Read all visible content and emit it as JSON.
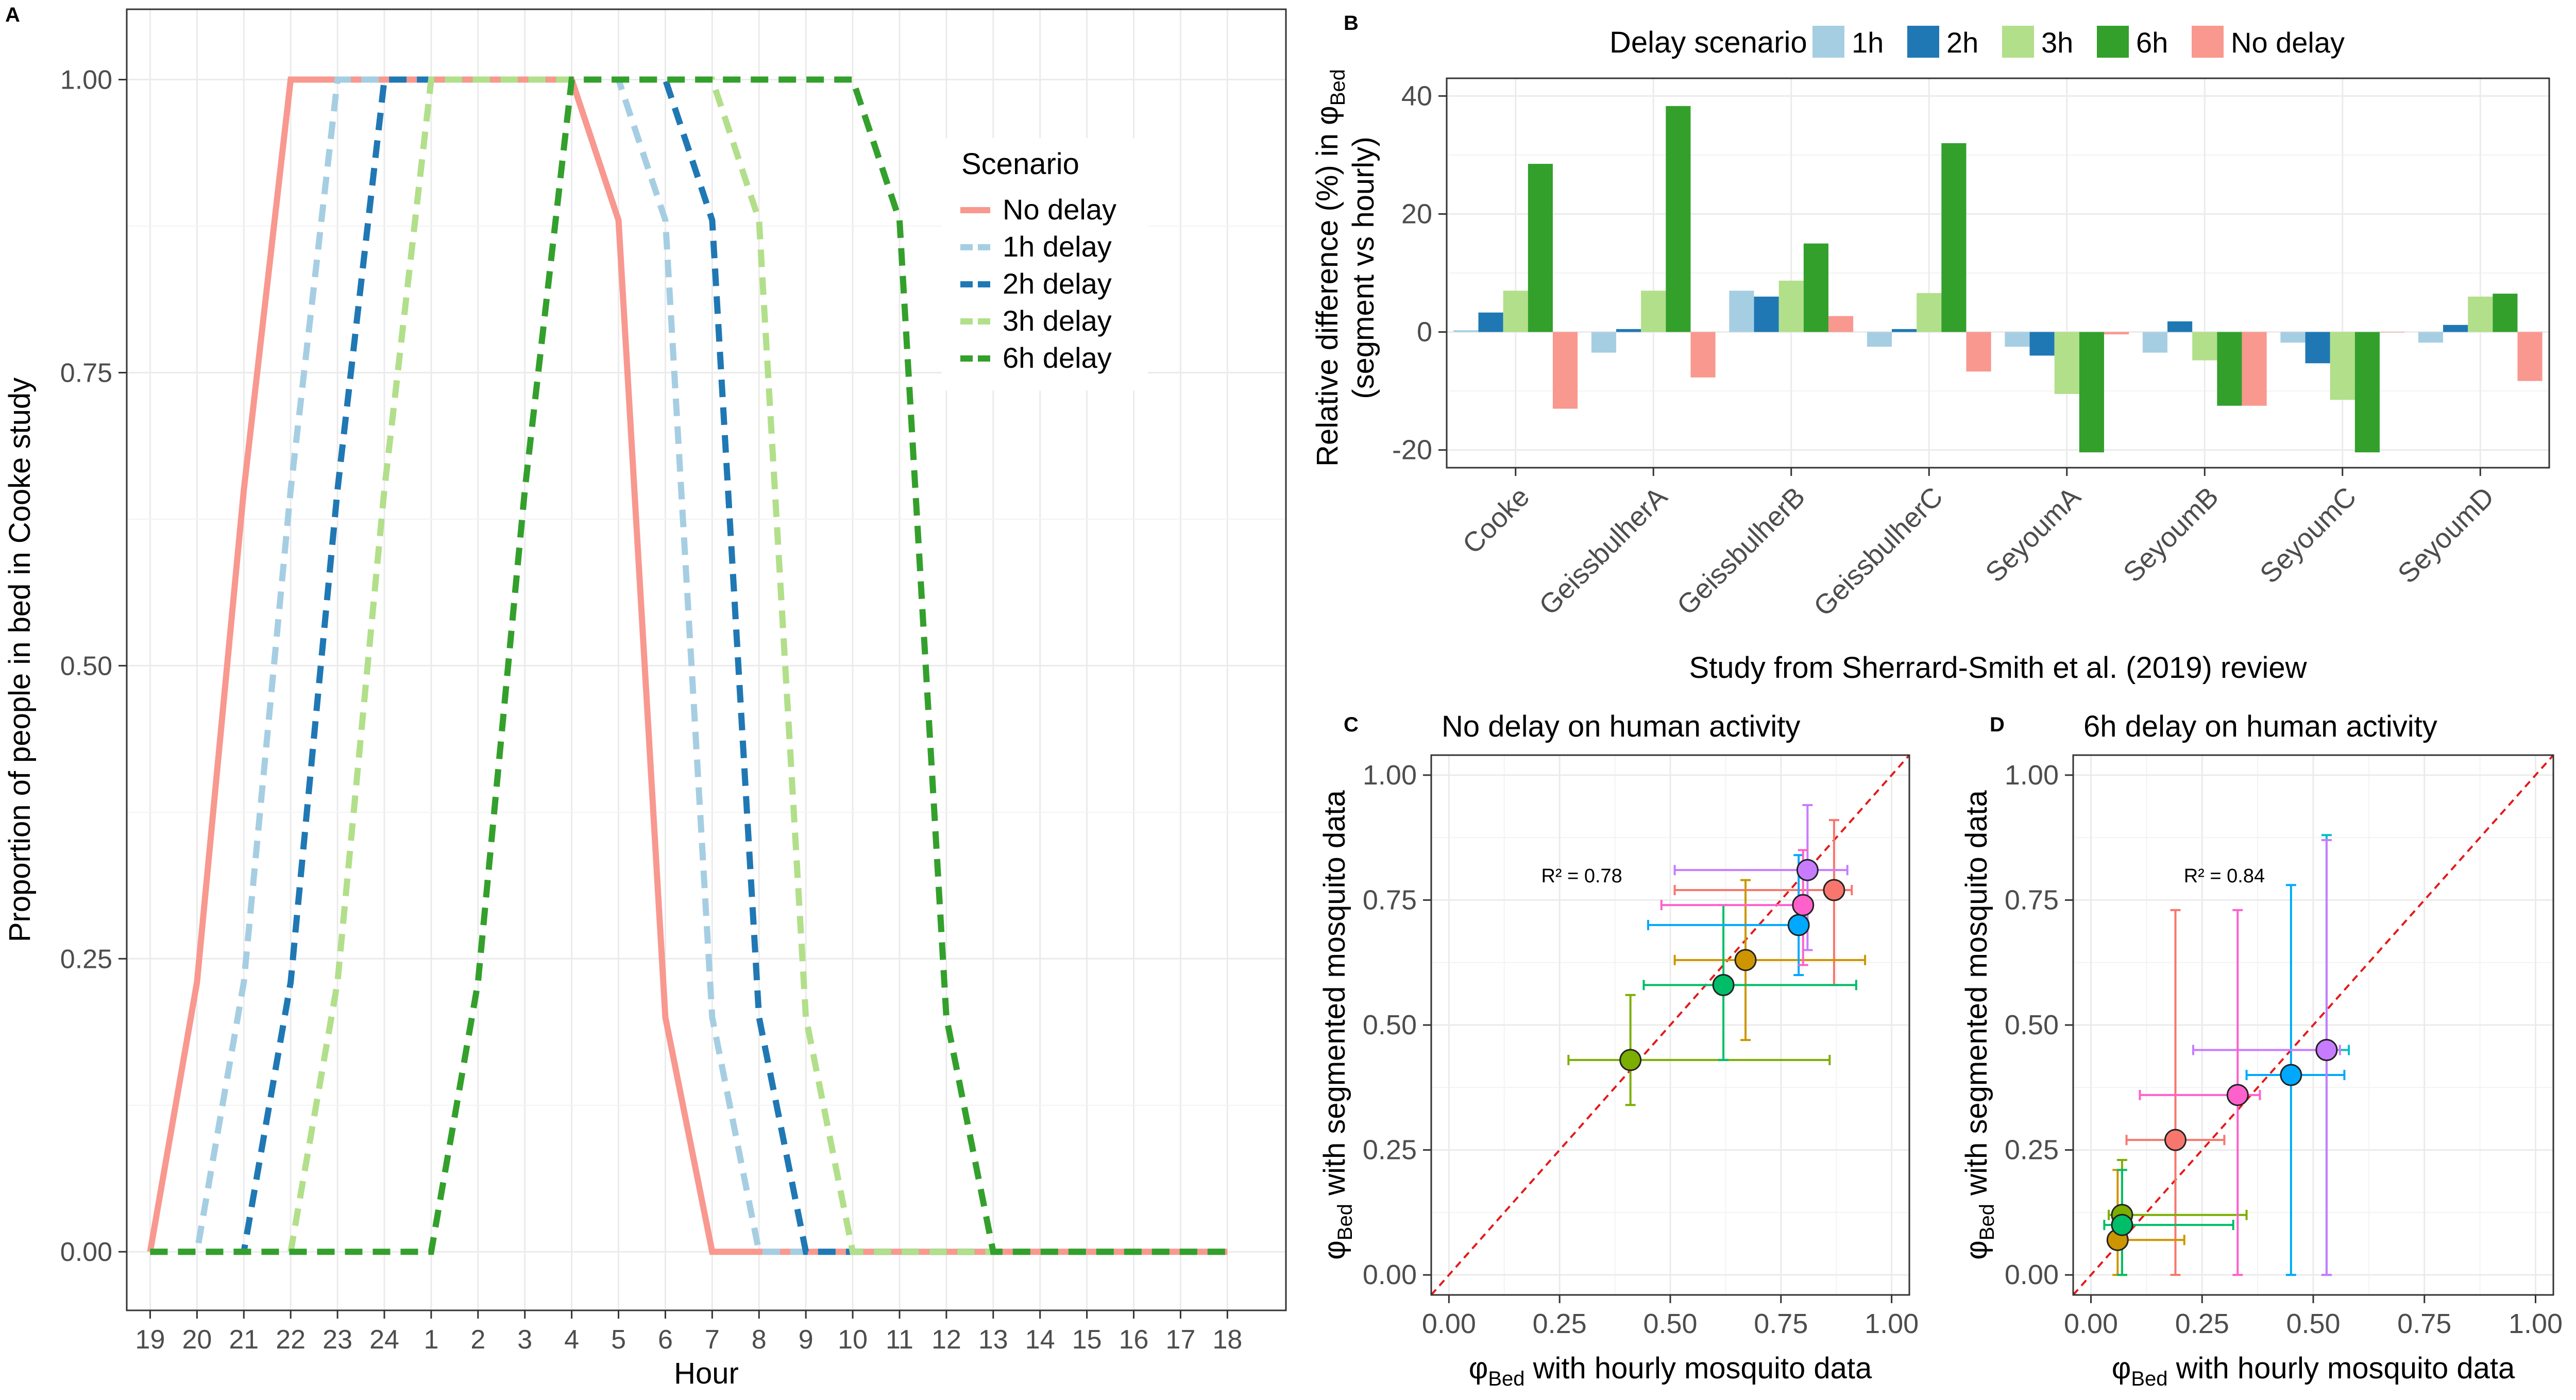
{
  "colors": {
    "no_delay": "#F8988F",
    "d1h": "#A6CEE3",
    "d2h": "#1F78B4",
    "d3h": "#B2DF8A",
    "d6h": "#33A02C",
    "grid": "#EBEBEB",
    "axis_text": "#4D4D4D",
    "identity_line": "#E41A1C",
    "study_palette": [
      "#F8766D",
      "#CD9600",
      "#7CAE00",
      "#00BE67",
      "#00BFC4",
      "#00A9FF",
      "#C77CFF",
      "#FF61CC"
    ]
  },
  "panels": {
    "a": {
      "tag": "A"
    },
    "b": {
      "tag": "B"
    },
    "c": {
      "tag": "C",
      "title": "No delay on human activity",
      "r2": "R² = 0.78"
    },
    "d": {
      "tag": "D",
      "title": "6h delay on human activity",
      "r2": "R² = 0.84"
    }
  },
  "chart_data": [
    {
      "id": "A",
      "type": "line",
      "title": "",
      "xlabel": "Hour",
      "ylabel": "Proportion of people in bed in Cooke study",
      "categories": [
        "19",
        "20",
        "21",
        "22",
        "23",
        "24",
        "1",
        "2",
        "3",
        "4",
        "5",
        "6",
        "7",
        "8",
        "9",
        "10",
        "11",
        "12",
        "13",
        "14",
        "15",
        "16",
        "17",
        "18"
      ],
      "ylim": [
        0,
        1.05
      ],
      "yticks": [
        "0.00",
        "0.25",
        "0.50",
        "0.75",
        "1.00"
      ],
      "legend": {
        "title": "Scenario",
        "position": "top-right"
      },
      "series": [
        {
          "name": "No delay",
          "color_key": "no_delay",
          "dashed": false,
          "values": [
            0,
            0.23,
            0.65,
            1,
            1,
            1,
            1,
            1,
            1,
            1,
            0.88,
            0.2,
            0,
            0,
            0,
            0,
            0,
            0,
            0,
            0,
            0,
            0,
            0,
            0
          ]
        },
        {
          "name": "1h delay",
          "color_key": "d1h",
          "dashed": true,
          "values": [
            0,
            0,
            0.23,
            0.65,
            1,
            1,
            1,
            1,
            1,
            1,
            1,
            0.88,
            0.2,
            0,
            0,
            0,
            0,
            0,
            0,
            0,
            0,
            0,
            0,
            0
          ]
        },
        {
          "name": "2h delay",
          "color_key": "d2h",
          "dashed": true,
          "values": [
            0,
            0,
            0,
            0.23,
            0.65,
            1,
            1,
            1,
            1,
            1,
            1,
            1,
            0.88,
            0.2,
            0,
            0,
            0,
            0,
            0,
            0,
            0,
            0,
            0,
            0
          ]
        },
        {
          "name": "3h delay",
          "color_key": "d3h",
          "dashed": true,
          "values": [
            0,
            0,
            0,
            0,
            0.23,
            0.65,
            1,
            1,
            1,
            1,
            1,
            1,
            1,
            0.88,
            0.2,
            0,
            0,
            0,
            0,
            0,
            0,
            0,
            0,
            0
          ]
        },
        {
          "name": "6h delay",
          "color_key": "d6h",
          "dashed": true,
          "values": [
            0,
            0,
            0,
            0,
            0,
            0,
            0,
            0.23,
            0.65,
            1,
            1,
            1,
            1,
            1,
            1,
            1,
            0.88,
            0.2,
            0,
            0,
            0,
            0,
            0,
            0
          ]
        }
      ]
    },
    {
      "id": "B",
      "type": "bar",
      "title": "",
      "xlabel": "Study from Sherrard-Smith et al. (2019) review",
      "ylabel_line1": "Relative difference (%) in φ",
      "ylabel_sub": "Bed",
      "ylabel_line2": "(segment vs hourly)",
      "categories": [
        "Cooke",
        "GeissbulherA",
        "GeissbulherB",
        "GeissbulherC",
        "SeyoumA",
        "SeyoumB",
        "SeyoumC",
        "SeyoumD"
      ],
      "ylim": [
        -23,
        43
      ],
      "yticks": [
        -20,
        0,
        20,
        40
      ],
      "legend": {
        "title": "Delay scenario",
        "position": "top"
      },
      "series": [
        {
          "name": "1h",
          "color_key": "d1h",
          "values": [
            0.3,
            -3.5,
            7,
            -2.5,
            -2.5,
            -3.5,
            -1.8,
            -1.8
          ]
        },
        {
          "name": "2h",
          "color_key": "d2h",
          "values": [
            3.3,
            0.5,
            6,
            0.5,
            -4,
            1.8,
            -5.3,
            1.2
          ]
        },
        {
          "name": "3h",
          "color_key": "d3h",
          "values": [
            7,
            7,
            8.7,
            6.6,
            -10.5,
            -4.8,
            -11.5,
            6
          ]
        },
        {
          "name": "6h",
          "color_key": "d6h",
          "values": [
            28.5,
            38.3,
            15,
            32,
            -20.4,
            -12.5,
            -20.4,
            6.5
          ]
        },
        {
          "name": "No delay",
          "color_key": "no_delay",
          "values": [
            -13,
            -7.7,
            2.7,
            -6.7,
            -0.4,
            -12.5,
            0,
            -8.3
          ]
        }
      ]
    },
    {
      "id": "C",
      "type": "scatter",
      "title": "No delay on human activity",
      "xlabel_main": "φ",
      "xlabel_sub": "Bed",
      "xlabel_rest": " with hourly mosquito data",
      "ylabel_main": "φ",
      "ylabel_sub": "Bed",
      "ylabel_rest": " with segmented mosquito data",
      "xlim": [
        -0.04,
        1.04
      ],
      "ylim": [
        -0.04,
        1.04
      ],
      "ticks": [
        "0.00",
        "0.25",
        "0.50",
        "0.75",
        "1.00"
      ],
      "annotation": "R² = 0.78",
      "points": [
        {
          "x": 0.87,
          "y": 0.77,
          "xmin": 0.51,
          "xmax": 0.91,
          "ymin": 0.58,
          "ymax": 0.91,
          "c": 0
        },
        {
          "x": 0.67,
          "y": 0.63,
          "xmin": 0.51,
          "xmax": 0.94,
          "ymin": 0.47,
          "ymax": 0.79,
          "c": 1
        },
        {
          "x": 0.41,
          "y": 0.43,
          "xmin": 0.27,
          "xmax": 0.86,
          "ymin": 0.34,
          "ymax": 0.56,
          "c": 2
        },
        {
          "x": 0.62,
          "y": 0.58,
          "xmin": 0.44,
          "xmax": 0.92,
          "ymin": 0.43,
          "ymax": 0.74,
          "c": 3
        },
        {
          "x": 0.79,
          "y": 0.7,
          "xmin": 0.45,
          "xmax": 0.81,
          "ymin": 0.6,
          "ymax": 0.84,
          "c": 5
        },
        {
          "x": 0.81,
          "y": 0.81,
          "xmin": 0.51,
          "xmax": 0.9,
          "ymin": 0.65,
          "ymax": 0.94,
          "c": 6
        },
        {
          "x": 0.8,
          "y": 0.74,
          "xmin": 0.48,
          "xmax": 0.82,
          "ymin": 0.62,
          "ymax": 0.85,
          "c": 7
        }
      ]
    },
    {
      "id": "D",
      "type": "scatter",
      "title": "6h delay on human activity",
      "xlabel_main": "φ",
      "xlabel_sub": "Bed",
      "xlabel_rest": " with hourly mosquito data",
      "ylabel_main": "φ",
      "ylabel_sub": "Bed",
      "ylabel_rest": " with segmented mosquito data",
      "xlim": [
        -0.04,
        1.04
      ],
      "ylim": [
        -0.04,
        1.04
      ],
      "ticks": [
        "0.00",
        "0.25",
        "0.50",
        "0.75",
        "1.00"
      ],
      "annotation": "R² = 0.84",
      "points": [
        {
          "x": 0.19,
          "y": 0.27,
          "xmin": 0.08,
          "xmax": 0.3,
          "ymin": 0.0,
          "ymax": 0.73,
          "c": 0
        },
        {
          "x": 0.06,
          "y": 0.07,
          "xmin": 0.04,
          "xmax": 0.21,
          "ymin": 0.0,
          "ymax": 0.21,
          "c": 1
        },
        {
          "x": 0.07,
          "y": 0.12,
          "xmin": 0.04,
          "xmax": 0.35,
          "ymin": 0.0,
          "ymax": 0.23,
          "c": 2
        },
        {
          "x": 0.07,
          "y": 0.1,
          "xmin": 0.03,
          "xmax": 0.32,
          "ymin": 0.0,
          "ymax": 0.21,
          "c": 3
        },
        {
          "x": 0.45,
          "y": 0.4,
          "xmin": 0.35,
          "xmax": 0.57,
          "ymin": 0.0,
          "ymax": 0.78,
          "c": 5
        },
        {
          "x": 0.53,
          "y": 0.45,
          "xmin": 0.23,
          "xmax": 0.58,
          "ymin": 0.0,
          "ymax": 0.88,
          "c": 4
        },
        {
          "x": 0.53,
          "y": 0.45,
          "xmin": 0.23,
          "xmax": 0.56,
          "ymin": 0.0,
          "ymax": 0.87,
          "c": 6
        },
        {
          "x": 0.33,
          "y": 0.36,
          "xmin": 0.11,
          "xmax": 0.38,
          "ymin": 0.0,
          "ymax": 0.73,
          "c": 7
        }
      ]
    }
  ]
}
